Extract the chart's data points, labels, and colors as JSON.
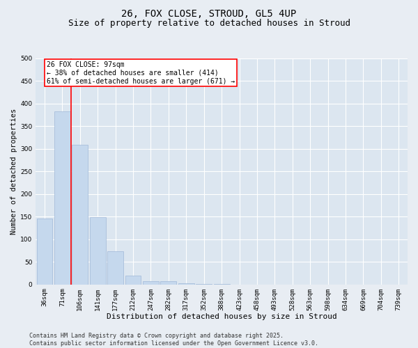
{
  "title": "26, FOX CLOSE, STROUD, GL5 4UP",
  "subtitle": "Size of property relative to detached houses in Stroud",
  "xlabel": "Distribution of detached houses by size in Stroud",
  "ylabel": "Number of detached properties",
  "bar_color": "#c5d8ed",
  "bar_edgecolor": "#a0b8d8",
  "background_color": "#dce6f0",
  "grid_color": "#ffffff",
  "fig_background": "#e8edf3",
  "categories": [
    "36sqm",
    "71sqm",
    "106sqm",
    "141sqm",
    "177sqm",
    "212sqm",
    "247sqm",
    "282sqm",
    "317sqm",
    "352sqm",
    "388sqm",
    "423sqm",
    "458sqm",
    "493sqm",
    "528sqm",
    "563sqm",
    "598sqm",
    "634sqm",
    "669sqm",
    "704sqm",
    "739sqm"
  ],
  "values": [
    145,
    383,
    308,
    148,
    73,
    20,
    8,
    8,
    2,
    1,
    1,
    0,
    0,
    0,
    0,
    0,
    0,
    0,
    0,
    0,
    0
  ],
  "ylim": [
    0,
    500
  ],
  "yticks": [
    0,
    50,
    100,
    150,
    200,
    250,
    300,
    350,
    400,
    450,
    500
  ],
  "red_line_x": 1.5,
  "annotation_line1": "26 FOX CLOSE: 97sqm",
  "annotation_line2": "← 38% of detached houses are smaller (414)",
  "annotation_line3": "61% of semi-detached houses are larger (671) →",
  "footer_line1": "Contains HM Land Registry data © Crown copyright and database right 2025.",
  "footer_line2": "Contains public sector information licensed under the Open Government Licence v3.0.",
  "title_fontsize": 10,
  "subtitle_fontsize": 9,
  "tick_fontsize": 6.5,
  "xlabel_fontsize": 8,
  "ylabel_fontsize": 7.5,
  "annotation_fontsize": 7,
  "footer_fontsize": 6
}
